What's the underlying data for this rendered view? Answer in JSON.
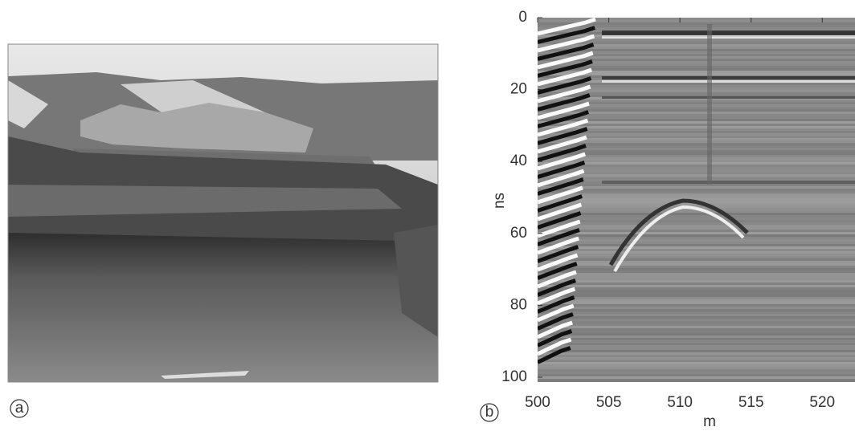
{
  "panels": [
    {
      "label": "a"
    },
    {
      "label": "b",
      "xlabel": "m",
      "ylabel": "ns",
      "xlim": [
        500,
        522.3
      ],
      "ylim": [
        0,
        100
      ],
      "xticks": [
        500,
        505,
        510,
        515,
        520
      ],
      "yticks": [
        0,
        20,
        40,
        60,
        80,
        100
      ]
    }
  ]
}
